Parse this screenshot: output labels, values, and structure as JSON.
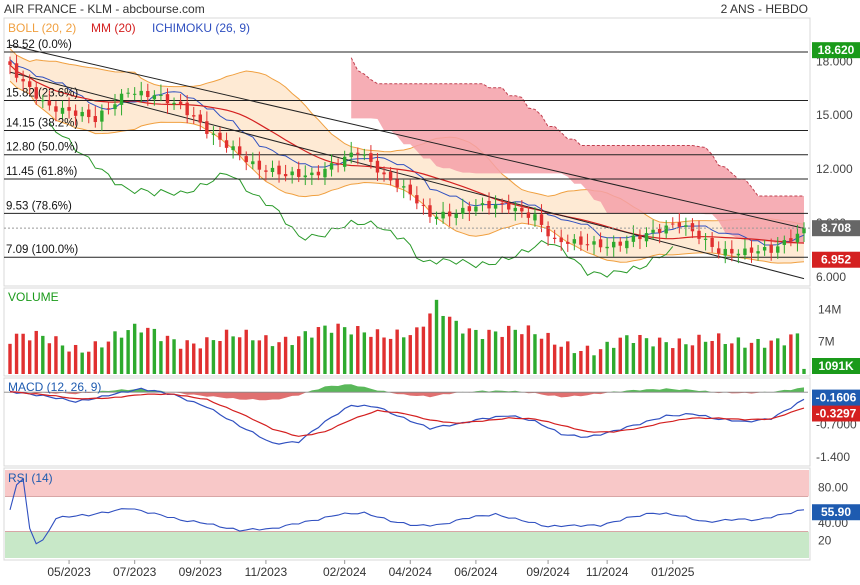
{
  "header": {
    "title": "AIR FRANCE - KLM - abcbourse.com",
    "period": "2 ANS - HEBDO"
  },
  "indicators": {
    "boll": "BOLL (20, 2)",
    "mm": "MM (20)",
    "ichimoku": "ICHIMOKU (26, 9)"
  },
  "colors": {
    "up": "#2eaa2e",
    "down": "#e03030",
    "boll": "#f0a040",
    "mm": "#d42020",
    "ichimoku": "#3050c0",
    "cloud_bear": "#f5a0a8",
    "chikou": "#2a9a2a",
    "rsi_high": "#f8c8c8",
    "rsi_low": "#c8e8c8",
    "last_price": "#666666",
    "hi_badge": "#1a9a1a",
    "lo_badge": "#d42020",
    "volume_badge": "#1a9a1a",
    "macd_badge": "#1e5bb0",
    "rsi_badge": "#1e5bb0"
  },
  "chart_data": [
    {
      "panel": "price",
      "type": "candlestick",
      "y_ticks": [
        "18.000",
        "15.000",
        "12.000",
        "9.000",
        "6.000"
      ],
      "y_tick_values": [
        18,
        15,
        12,
        9,
        6
      ],
      "ylim": [
        5.6,
        20.3
      ],
      "fibonacci": [
        {
          "label": "18.52  (0.0%)",
          "value": 18.52
        },
        {
          "label": "15.82  (23.6%)",
          "value": 15.82
        },
        {
          "label": "14.15  (38.2%)",
          "value": 14.15
        },
        {
          "label": "12.80  (50.0%)",
          "value": 12.8
        },
        {
          "label": "11.45  (61.8%)",
          "value": 11.45
        },
        {
          "label": "9.53  (78.6%)",
          "value": 9.53
        },
        {
          "label": "7.09  (100.0%)",
          "value": 7.09
        }
      ],
      "trendlines": [
        {
          "from": [
            0,
            18.9
          ],
          "to": [
            121,
            8.7
          ]
        },
        {
          "from": [
            0,
            17.4
          ],
          "to": [
            121,
            5.9
          ]
        }
      ],
      "badges": {
        "high": "18.620",
        "last": "8.708",
        "low": "6.952"
      },
      "high_value": 18.62,
      "last_value": 8.708,
      "low_value": 6.952,
      "close_anchors": [
        [
          0,
          17.6
        ],
        [
          6,
          15.6
        ],
        [
          10,
          15.0
        ],
        [
          13,
          14.6
        ],
        [
          18,
          16.5
        ],
        [
          22,
          16.2
        ],
        [
          26,
          15.3
        ],
        [
          30,
          14.1
        ],
        [
          34,
          13.3
        ],
        [
          38,
          12.0
        ],
        [
          42,
          11.5
        ],
        [
          46,
          11.7
        ],
        [
          50,
          12.6
        ],
        [
          53,
          13.0
        ],
        [
          57,
          11.4
        ],
        [
          61,
          10.7
        ],
        [
          64,
          9.6
        ],
        [
          68,
          9.5
        ],
        [
          72,
          9.8
        ],
        [
          76,
          10.0
        ],
        [
          80,
          9.5
        ],
        [
          83,
          7.9
        ],
        [
          87,
          7.7
        ],
        [
          91,
          7.8
        ],
        [
          95,
          8.3
        ],
        [
          99,
          8.5
        ],
        [
          102,
          8.8
        ],
        [
          105,
          8.3
        ],
        [
          108,
          7.6
        ],
        [
          112,
          7.4
        ],
        [
          116,
          7.3
        ],
        [
          118,
          7.8
        ],
        [
          121,
          8.7
        ]
      ]
    },
    {
      "panel": "volume",
      "type": "bar",
      "title": "VOLUME",
      "y_ticks": [
        "14M",
        "7M"
      ],
      "y_tick_values": [
        14,
        7
      ],
      "ylim": [
        0,
        16
      ],
      "badge": "1091K",
      "value_anchors": [
        [
          0,
          8
        ],
        [
          10,
          6
        ],
        [
          20,
          9
        ],
        [
          30,
          7
        ],
        [
          40,
          8
        ],
        [
          50,
          9
        ],
        [
          55,
          10
        ],
        [
          62,
          8
        ],
        [
          65,
          14
        ],
        [
          68,
          11
        ],
        [
          75,
          9
        ],
        [
          80,
          8
        ],
        [
          85,
          7
        ],
        [
          90,
          5
        ],
        [
          95,
          7
        ],
        [
          100,
          8
        ],
        [
          105,
          7
        ],
        [
          110,
          6
        ],
        [
          115,
          8
        ],
        [
          120,
          8
        ],
        [
          121,
          1.1
        ]
      ]
    },
    {
      "panel": "macd",
      "type": "line",
      "title": "MACD (12, 26, 9)",
      "y_ticks": [
        "-0.7000",
        "-1.400"
      ],
      "y_tick_values": [
        -0.7,
        -1.4
      ],
      "ylim": [
        -1.55,
        0.22
      ],
      "badges": {
        "macd": "-0.1606",
        "signal": "-0.3297"
      },
      "macd_anchors": [
        [
          0,
          0.03
        ],
        [
          5,
          -0.1
        ],
        [
          10,
          -0.2
        ],
        [
          15,
          -0.05
        ],
        [
          20,
          0.05
        ],
        [
          25,
          -0.05
        ],
        [
          30,
          -0.3
        ],
        [
          35,
          -0.75
        ],
        [
          40,
          -1.1
        ],
        [
          44,
          -1.05
        ],
        [
          48,
          -0.65
        ],
        [
          52,
          -0.3
        ],
        [
          56,
          -0.3
        ],
        [
          60,
          -0.55
        ],
        [
          64,
          -0.8
        ],
        [
          68,
          -0.7
        ],
        [
          72,
          -0.55
        ],
        [
          76,
          -0.5
        ],
        [
          80,
          -0.65
        ],
        [
          84,
          -0.9
        ],
        [
          88,
          -0.95
        ],
        [
          92,
          -0.85
        ],
        [
          96,
          -0.7
        ],
        [
          100,
          -0.5
        ],
        [
          104,
          -0.45
        ],
        [
          108,
          -0.6
        ],
        [
          112,
          -0.65
        ],
        [
          116,
          -0.55
        ],
        [
          121,
          -0.16
        ]
      ],
      "signal_anchors": [
        [
          0,
          0.02
        ],
        [
          5,
          -0.05
        ],
        [
          10,
          -0.15
        ],
        [
          15,
          -0.12
        ],
        [
          20,
          -0.05
        ],
        [
          25,
          -0.05
        ],
        [
          30,
          -0.15
        ],
        [
          35,
          -0.45
        ],
        [
          40,
          -0.8
        ],
        [
          44,
          -0.95
        ],
        [
          48,
          -0.85
        ],
        [
          52,
          -0.6
        ],
        [
          56,
          -0.4
        ],
        [
          60,
          -0.45
        ],
        [
          64,
          -0.6
        ],
        [
          68,
          -0.68
        ],
        [
          72,
          -0.62
        ],
        [
          76,
          -0.55
        ],
        [
          80,
          -0.58
        ],
        [
          84,
          -0.72
        ],
        [
          88,
          -0.85
        ],
        [
          92,
          -0.85
        ],
        [
          96,
          -0.78
        ],
        [
          100,
          -0.65
        ],
        [
          104,
          -0.55
        ],
        [
          108,
          -0.56
        ],
        [
          112,
          -0.6
        ],
        [
          116,
          -0.58
        ],
        [
          121,
          -0.33
        ]
      ]
    },
    {
      "panel": "rsi",
      "type": "line",
      "title": "RSI (14)",
      "y_ticks": [
        "80.00",
        "40.00",
        "20"
      ],
      "y_tick_values": [
        80,
        40,
        20
      ],
      "overbought": 70,
      "oversold": 30,
      "ylim": [
        0,
        100
      ],
      "badge": "55.90",
      "value_anchors": [
        [
          0,
          55
        ],
        [
          1,
          85
        ],
        [
          2,
          90
        ],
        [
          3,
          35
        ],
        [
          4,
          18
        ],
        [
          5,
          20
        ],
        [
          7,
          45
        ],
        [
          12,
          48
        ],
        [
          18,
          58
        ],
        [
          22,
          50
        ],
        [
          26,
          42
        ],
        [
          30,
          40
        ],
        [
          35,
          32
        ],
        [
          40,
          32
        ],
        [
          44,
          40
        ],
        [
          50,
          50
        ],
        [
          54,
          50
        ],
        [
          58,
          42
        ],
        [
          62,
          38
        ],
        [
          66,
          38
        ],
        [
          70,
          45
        ],
        [
          74,
          50
        ],
        [
          78,
          44
        ],
        [
          82,
          35
        ],
        [
          86,
          36
        ],
        [
          90,
          38
        ],
        [
          94,
          46
        ],
        [
          98,
          50
        ],
        [
          102,
          48
        ],
        [
          106,
          42
        ],
        [
          110,
          44
        ],
        [
          114,
          42
        ],
        [
          118,
          50
        ],
        [
          121,
          56
        ]
      ]
    },
    {
      "panel": "x_axis",
      "type": "axis",
      "labels": [
        "05/2023",
        "07/2023",
        "09/2023",
        "11/2023",
        "02/2024",
        "04/2024",
        "06/2024",
        "09/2024",
        "11/2024",
        "01/2025"
      ],
      "label_index": [
        9,
        19,
        29,
        39,
        51,
        61,
        71,
        82,
        91,
        101
      ]
    }
  ]
}
